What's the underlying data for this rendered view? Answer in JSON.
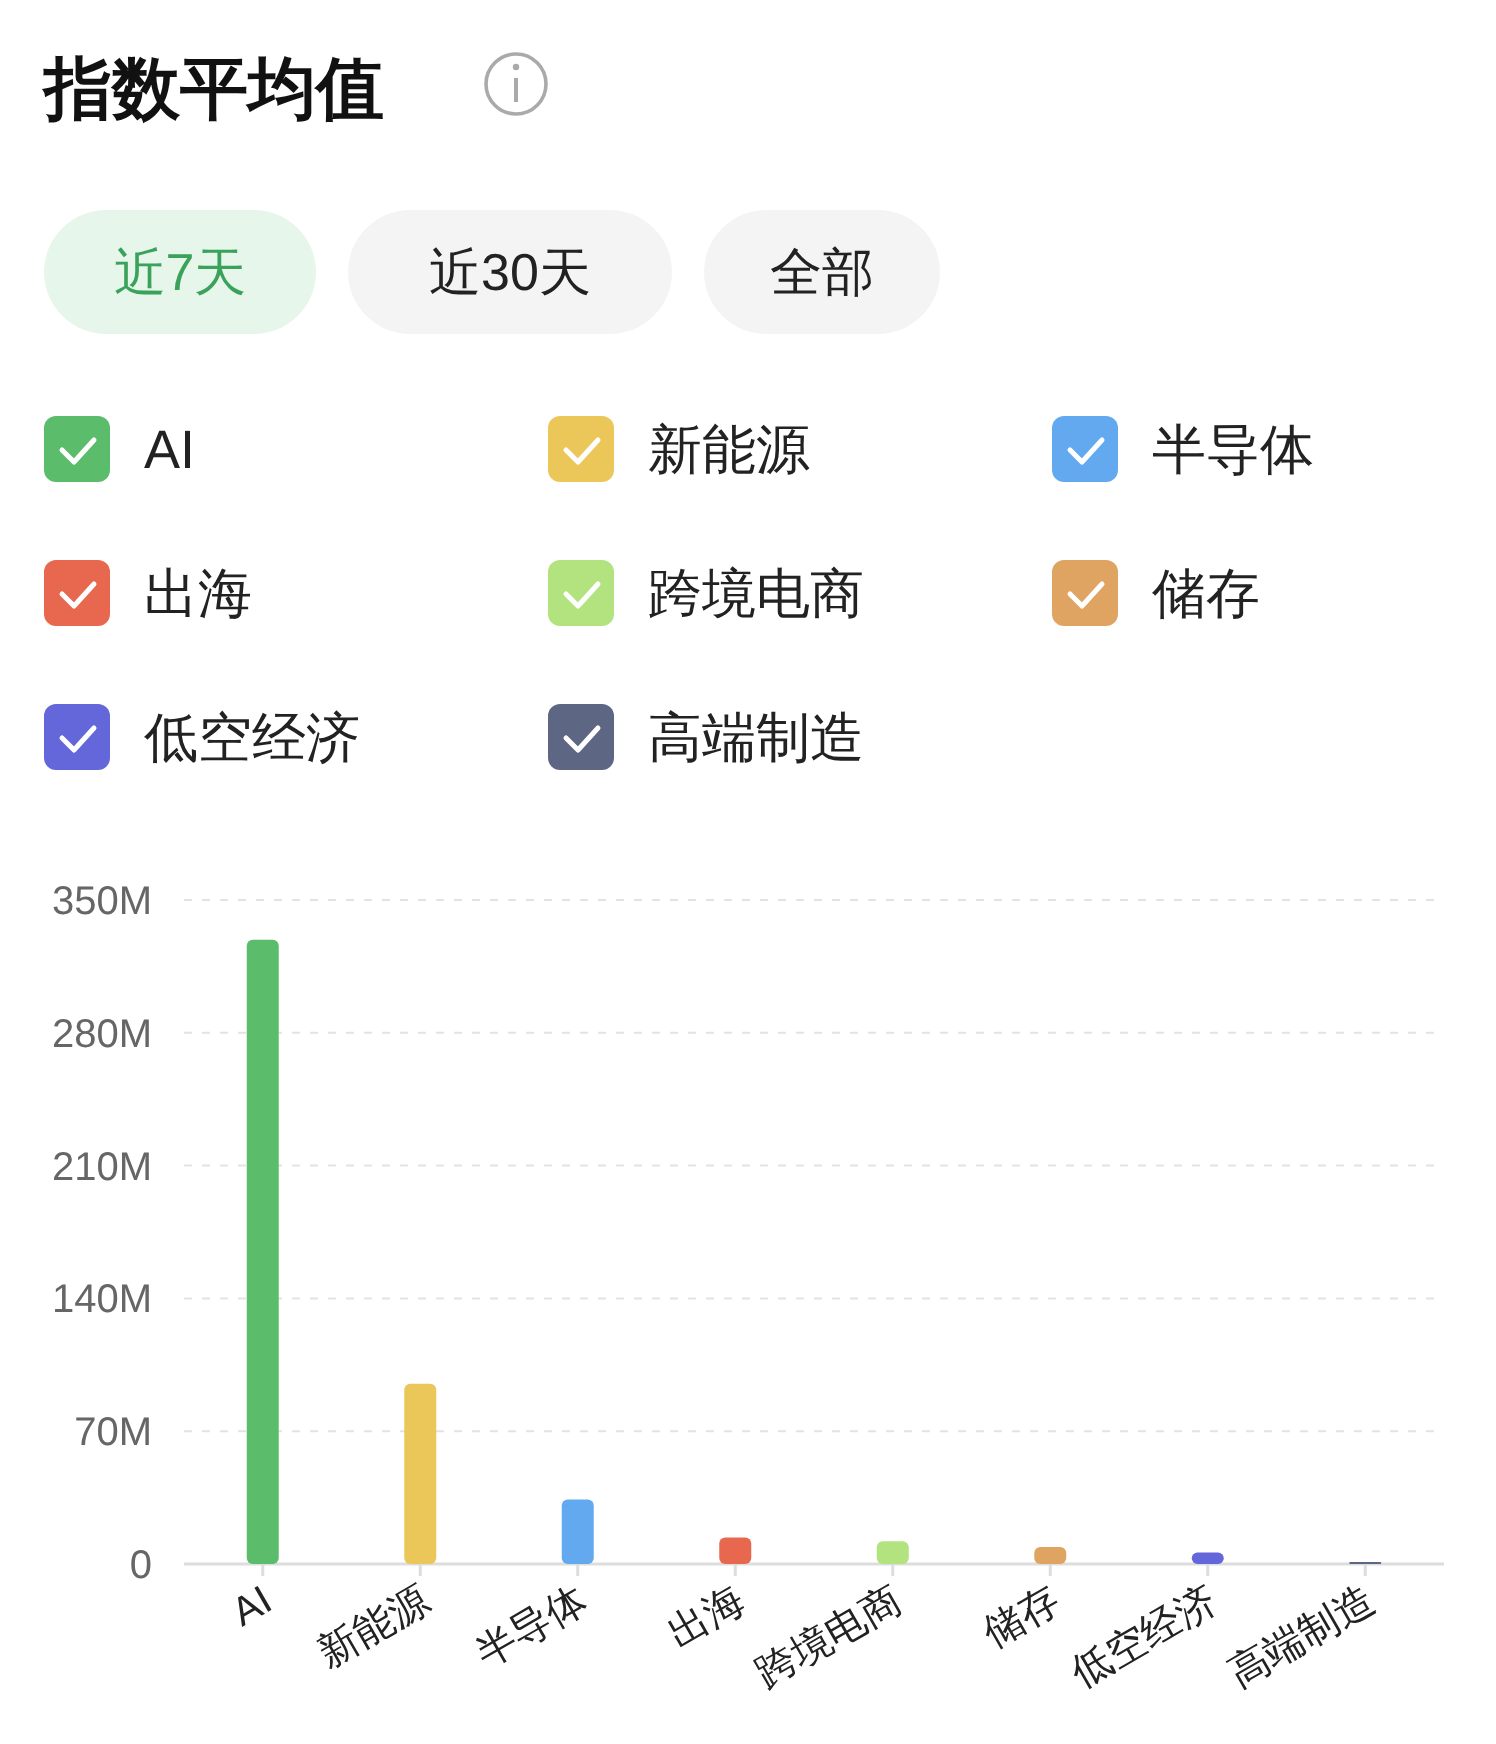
{
  "chart_data": {
    "type": "bar",
    "title": "指数平均值",
    "annotations": [
      "近7天",
      "近30天",
      "全部"
    ],
    "categories": [
      "AI",
      "新能源",
      "半导体",
      "出海",
      "跨境电商",
      "储存",
      "低空经济",
      "高端制造"
    ],
    "values": [
      329,
      95,
      34,
      14,
      12,
      9,
      6,
      1
    ],
    "colors": [
      "#5bbd6b",
      "#ebc75a",
      "#63a9f0",
      "#e8674f",
      "#b2e37f",
      "#e0a462",
      "#6467d9",
      "#5d6783"
    ],
    "ylim": [
      0,
      350
    ],
    "yticks": [
      0,
      {
        "value": 70,
        "label": "70M"
      },
      {
        "value": 140,
        "label": "140M"
      },
      {
        "value": 210,
        "label": "210M"
      },
      {
        "value": 280,
        "label": "280M"
      },
      {
        "value": 350,
        "label": "350M"
      }
    ],
    "grid": "y"
  }
}
